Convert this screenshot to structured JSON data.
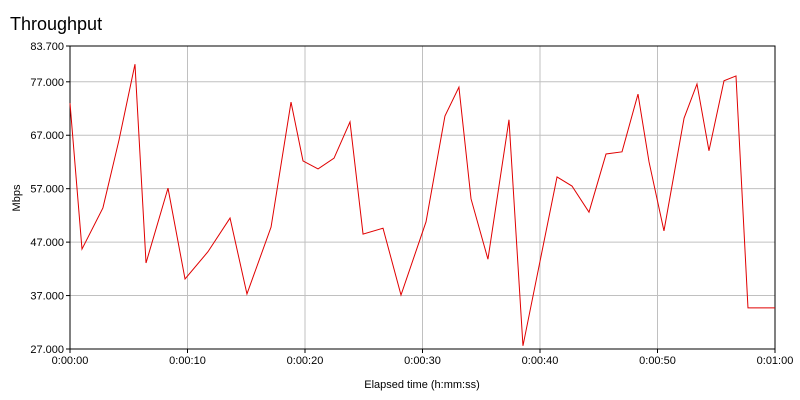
{
  "chart_data": {
    "type": "line",
    "title": "Throughput",
    "xlabel": "Elapsed time (h:mm:ss)",
    "ylabel": "Mbps",
    "x": [
      0,
      1.02,
      2.8,
      4.17,
      5.53,
      6.47,
      8.34,
      9.79,
      11.74,
      13.62,
      15.06,
      17.11,
      18.81,
      19.83,
      21.11,
      22.47,
      23.83,
      24.94,
      26.64,
      28.17,
      30.3,
      31.91,
      33.1,
      34.13,
      35.57,
      37.36,
      38.55,
      41.45,
      42.72,
      44.17,
      45.62,
      46.98,
      48.34,
      49.28,
      50.55,
      52.26,
      53.36,
      54.38,
      55.66,
      56.68,
      57.7,
      60
    ],
    "series": [
      {
        "name": "Throughput",
        "color": "#e00000",
        "values": [
          73.0,
          45.7,
          53.4,
          66.1,
          80.3,
          43.1,
          57.1,
          40.1,
          45.2,
          51.5,
          37.3,
          49.8,
          73.2,
          62.2,
          60.7,
          62.7,
          69.5,
          48.5,
          49.6,
          37.1,
          50.8,
          70.6,
          76.0,
          55.1,
          43.8,
          69.9,
          27.6,
          59.2,
          57.5,
          52.6,
          63.5,
          63.9,
          74.7,
          62.0,
          49.1,
          70.2,
          76.6,
          64.1,
          77.2,
          78.1,
          34.7,
          34.7
        ]
      }
    ],
    "xlim": [
      0,
      60
    ],
    "xticks": [
      {
        "value": 0,
        "label": "0:00:00"
      },
      {
        "value": 10,
        "label": "0:00:10"
      },
      {
        "value": 20,
        "label": "0:00:20"
      },
      {
        "value": 30,
        "label": "0:00:30"
      },
      {
        "value": 40,
        "label": "0:00:40"
      },
      {
        "value": 50,
        "label": "0:00:50"
      },
      {
        "value": 60,
        "label": "0:01:00"
      }
    ],
    "ylim": [
      27,
      83.7
    ],
    "yticks": [
      {
        "value": 27,
        "label": "27.000"
      },
      {
        "value": 37,
        "label": "37.000"
      },
      {
        "value": 47,
        "label": "47.000"
      },
      {
        "value": 57,
        "label": "57.000"
      },
      {
        "value": 67,
        "label": "67.000"
      },
      {
        "value": 77,
        "label": "77.000"
      },
      {
        "value": 83.7,
        "label": "83.700"
      }
    ],
    "grid": true
  }
}
